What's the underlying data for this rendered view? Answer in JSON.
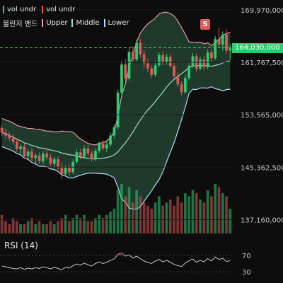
{
  "legend": {
    "row1": [
      {
        "label": "vol undr",
        "color": "#2ecc71"
      },
      {
        "label": "vol undr",
        "color": "#e05a5a"
      }
    ],
    "bollinger_label": "볼린저 밴드",
    "row2": [
      {
        "label": "Upper",
        "color": "#e79aa8"
      },
      {
        "label": "Middle",
        "color": "#9ee0c0"
      },
      {
        "label": "Lower",
        "color": "#b6d6ff"
      }
    ]
  },
  "current_price": "164,030,000",
  "signal_badge": "S",
  "rsi": {
    "title": "RSI (14)",
    "levels": [
      "70",
      "30"
    ]
  },
  "chart_data": {
    "type": "candlestick",
    "y_axis_ticks": [
      "169,970,000",
      "161,767,500",
      "153,565,000",
      "145,362,500",
      "137,160,000"
    ],
    "y_axis_values": [
      169970000,
      161767500,
      153565000,
      145362500,
      137160000
    ],
    "ylim": [
      135000000,
      171500000
    ],
    "current_price_value": 164030000,
    "colors": {
      "up": "#2ecc71",
      "down": "#e05a5a",
      "upper_band": "#e79aa8",
      "middle_band": "#9ee0c0",
      "lower_band": "#b6d6ff",
      "band_fill": "#2f5f45",
      "rsi_line": "#c8c8c8",
      "rsi_fill": "#6b3a3a"
    },
    "candles": [
      [
        151500000,
        152000000,
        150200000,
        150800000
      ],
      [
        150800000,
        151400000,
        149800000,
        150300000
      ],
      [
        150300000,
        150900000,
        149500000,
        149900000
      ],
      [
        149900000,
        150600000,
        148900000,
        149300000
      ],
      [
        149300000,
        149900000,
        147800000,
        148200000
      ],
      [
        148200000,
        148900000,
        147300000,
        148600000
      ],
      [
        148600000,
        149100000,
        146700000,
        147100000
      ],
      [
        147100000,
        148200000,
        146600000,
        147800000
      ],
      [
        147800000,
        148300000,
        146400000,
        146800000
      ],
      [
        146800000,
        147600000,
        145600000,
        147200000
      ],
      [
        147200000,
        147700000,
        145900000,
        146300000
      ],
      [
        146300000,
        147900000,
        145900000,
        147500000
      ],
      [
        147500000,
        148100000,
        146500000,
        146900000
      ],
      [
        146900000,
        147400000,
        145500000,
        145900000
      ],
      [
        145900000,
        147000000,
        145400000,
        146600000
      ],
      [
        146600000,
        147100000,
        145000000,
        145400000
      ],
      [
        145400000,
        146100000,
        143600000,
        144300000
      ],
      [
        144300000,
        145700000,
        143900000,
        145300000
      ],
      [
        145300000,
        145800000,
        144100000,
        144600000
      ],
      [
        144600000,
        146600000,
        144300000,
        146200000
      ],
      [
        146200000,
        148100000,
        145900000,
        147700000
      ],
      [
        147700000,
        148200000,
        146600000,
        147000000
      ],
      [
        147000000,
        148800000,
        146700000,
        148300000
      ],
      [
        148300000,
        148900000,
        147100000,
        147500000
      ],
      [
        147500000,
        147900000,
        146200000,
        146600000
      ],
      [
        146600000,
        148300000,
        146300000,
        147900000
      ],
      [
        147900000,
        149400000,
        147600000,
        149000000
      ],
      [
        149000000,
        149600000,
        147900000,
        148300000
      ],
      [
        148300000,
        149300000,
        147700000,
        148900000
      ],
      [
        148900000,
        150800000,
        148600000,
        150300000
      ],
      [
        150300000,
        152000000,
        149900000,
        151600000
      ],
      [
        151600000,
        157500000,
        151300000,
        157000000
      ],
      [
        157000000,
        162000000,
        156400000,
        161400000
      ],
      [
        161400000,
        162300000,
        158700000,
        159200000
      ],
      [
        159200000,
        164000000,
        158900000,
        163400000
      ],
      [
        163400000,
        164300000,
        161800000,
        162200000
      ],
      [
        162200000,
        165300000,
        161900000,
        164800000
      ],
      [
        164800000,
        165400000,
        162500000,
        163000000
      ],
      [
        163000000,
        163600000,
        160900000,
        161600000
      ],
      [
        161600000,
        162400000,
        160200000,
        160800000
      ],
      [
        160800000,
        161300000,
        159300000,
        159800000
      ],
      [
        159800000,
        161900000,
        159500000,
        161300000
      ],
      [
        161300000,
        163300000,
        161000000,
        162900000
      ],
      [
        162900000,
        163500000,
        161300000,
        161700000
      ],
      [
        161700000,
        163100000,
        161400000,
        162600000
      ],
      [
        162600000,
        163100000,
        160900000,
        161200000
      ],
      [
        161200000,
        161700000,
        159200000,
        159600000
      ],
      [
        159600000,
        160200000,
        157900000,
        158300000
      ],
      [
        158300000,
        158800000,
        156600000,
        157100000
      ],
      [
        157100000,
        159800000,
        156800000,
        159300000
      ],
      [
        159300000,
        161700000,
        159000000,
        161200000
      ],
      [
        161200000,
        163200000,
        160900000,
        162700000
      ],
      [
        162700000,
        163100000,
        160300000,
        160800000
      ],
      [
        160800000,
        162600000,
        160500000,
        162200000
      ],
      [
        162200000,
        162800000,
        160500000,
        161000000
      ],
      [
        161000000,
        163800000,
        160700000,
        163300000
      ],
      [
        163300000,
        163900000,
        161900000,
        162400000
      ],
      [
        162400000,
        165900000,
        162100000,
        165400000
      ],
      [
        165400000,
        167100000,
        164000000,
        164500000
      ],
      [
        164500000,
        166600000,
        163600000,
        166100000
      ],
      [
        166100000,
        166900000,
        163100000,
        163600000
      ],
      [
        163600000,
        164600000,
        162100000,
        164030000
      ]
    ],
    "volumes": [
      6,
      4,
      3,
      5,
      4,
      3,
      3,
      4,
      5,
      3,
      4,
      3,
      3,
      4,
      3,
      4,
      5,
      6,
      4,
      5,
      6,
      5,
      6,
      4,
      4,
      5,
      6,
      5,
      6,
      7,
      8,
      14,
      16,
      12,
      15,
      10,
      14,
      12,
      10,
      9,
      8,
      10,
      12,
      9,
      10,
      11,
      9,
      12,
      10,
      13,
      12,
      14,
      13,
      11,
      10,
      14,
      12,
      16,
      15,
      13,
      12,
      8
    ],
    "rsi_values": [
      44,
      42,
      40,
      38,
      37,
      40,
      36,
      39,
      37,
      40,
      38,
      42,
      40,
      37,
      41,
      38,
      35,
      41,
      39,
      45,
      49,
      46,
      51,
      47,
      44,
      50,
      54,
      50,
      53,
      58,
      61,
      72,
      76,
      68,
      71,
      63,
      68,
      62,
      56,
      53,
      50,
      56,
      60,
      54,
      58,
      53,
      48,
      45,
      43,
      51,
      57,
      61,
      53,
      58,
      54,
      62,
      56,
      66,
      60,
      63,
      55,
      57
    ]
  }
}
